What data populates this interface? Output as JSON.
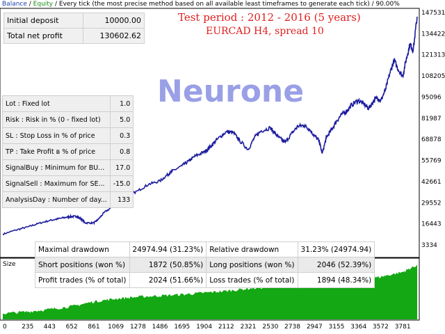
{
  "header": {
    "balance_label": "Balance",
    "sep1": " / ",
    "equity_label": "Equity",
    "info": " / Every tick (the most precise method based on all available least timeframes to generate each tick) / 90.00%"
  },
  "deposit_box": {
    "rows": [
      {
        "label": "Initial deposit",
        "value": "10000.00"
      },
      {
        "label": "Total net profit",
        "value": "130602.62"
      }
    ]
  },
  "titles": {
    "line1": "Test period : 2012 - 2016 (5 years)",
    "line2": "EURCAD H4, spread 10",
    "watermark": "Neurone"
  },
  "params_box": {
    "rows": [
      {
        "label": "Lot : Fixed lot",
        "value": "1.0"
      },
      {
        "label": "Risk : Risk in % (0 - fixed lot)",
        "value": "5.0"
      },
      {
        "label": "SL : Stop Loss in % of price",
        "value": "0.3"
      },
      {
        "label": "TP : Take Profit в % of price",
        "value": "0.8"
      },
      {
        "label": "SignalBuy : Minimum for BU...",
        "value": "17.0"
      },
      {
        "label": "SignalSell : Maximum for SE...",
        "value": "-15.0"
      },
      {
        "label": "AnalysisDay : Number of day...",
        "value": "133"
      }
    ]
  },
  "stats_box": {
    "rows": [
      [
        "Maximal drawdown",
        "24974.94 (31.23%)",
        "Relative drawdown",
        "31.23% (24974.94)"
      ],
      [
        "Short positions (won %)",
        "1872 (50.85%)",
        "Long positions (won %)",
        "2046 (52.39%)"
      ],
      [
        "Profit trades (% of total)",
        "2024 (51.66%)",
        "Loss trades (% of total)",
        "1894 (48.34%)"
      ]
    ]
  },
  "size_label": "Size",
  "chart_data": {
    "type": "line",
    "title": "",
    "xlabel": "",
    "ylabel": "",
    "x_ticks": [
      "0",
      "235",
      "443",
      "652",
      "861",
      "1069",
      "1278",
      "1486",
      "1695",
      "1904",
      "2112",
      "2321",
      "2530",
      "2738",
      "2947",
      "3155",
      "3364",
      "3572",
      "3781"
    ],
    "y_ticks": [
      "3334",
      "16443",
      "29552",
      "42661",
      "55769",
      "68878",
      "81987",
      "95096",
      "108205",
      "121313",
      "134422",
      "147531"
    ],
    "xlim": [
      0,
      3918
    ],
    "ylim": [
      3334,
      147531
    ],
    "series": [
      {
        "color": "#1c1c9e",
        "x": [
          0,
          120,
          235,
          330,
          443,
          520,
          600,
          652,
          700,
          740,
          780,
          861,
          900,
          960,
          1069,
          1150,
          1278,
          1380,
          1486,
          1560,
          1600,
          1695,
          1760,
          1820,
          1904,
          1960,
          2030,
          2112,
          2180,
          2240,
          2321,
          2380,
          2440,
          2530,
          2560,
          2610,
          2670,
          2738,
          2790,
          2850,
          2900,
          2947,
          2990,
          3020,
          3060,
          3100,
          3155,
          3200,
          3260,
          3300,
          3364,
          3420,
          3460,
          3500,
          3540,
          3572,
          3620,
          3660,
          3700,
          3740,
          3781,
          3820,
          3850,
          3880,
          3918
        ],
        "y": [
          10000,
          12500,
          14500,
          16500,
          18500,
          19500,
          20500,
          21000,
          21000,
          19500,
          17000,
          17000,
          19000,
          23500,
          28500,
          32500,
          37000,
          41000,
          43000,
          47000,
          49000,
          52500,
          55500,
          58500,
          61000,
          64000,
          69000,
          73500,
          73000,
          68000,
          62500,
          70000,
          74000,
          76000,
          73500,
          70000,
          67000,
          73000,
          77000,
          77500,
          75000,
          71000,
          68000,
          60000,
          70000,
          74000,
          80000,
          84000,
          87000,
          90500,
          93000,
          90500,
          88000,
          92000,
          95000,
          92500,
          100000,
          110000,
          118000,
          112000,
          108000,
          120000,
          128000,
          124000,
          145000
        ]
      }
    ],
    "volume": {
      "color": "#14a814",
      "x": [
        0,
        235,
        443,
        652,
        861,
        1069,
        1278,
        1486,
        1695,
        1904,
        2112,
        2321,
        2530,
        2738,
        2947,
        3155,
        3364,
        3572,
        3781,
        3918
      ],
      "y": [
        0.1,
        0.13,
        0.17,
        0.22,
        0.3,
        0.35,
        0.38,
        0.4,
        0.42,
        0.45,
        0.48,
        0.52,
        0.55,
        0.58,
        0.6,
        0.62,
        0.66,
        0.72,
        0.8,
        0.92
      ]
    }
  }
}
